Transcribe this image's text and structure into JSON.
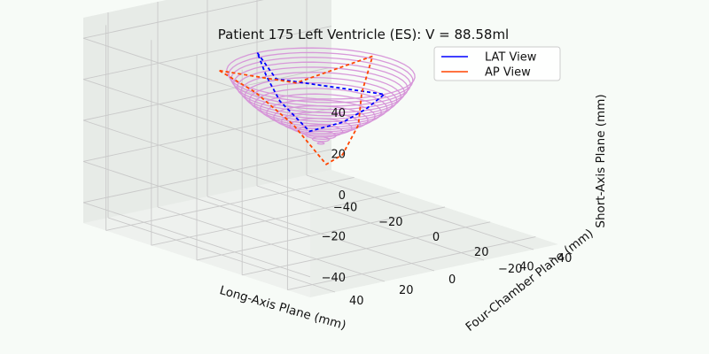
{
  "chart_data": {
    "type": "3d-line",
    "title": "Patient 175 Left Ventricle (ES): V = 88.58ml",
    "xlabel": "Long-Axis Plane (mm)",
    "ylabel": "Four-Chamber Plane (mm)",
    "zlabel": "Short-Axis Plane (mm)",
    "x_ticks": [
      "−40",
      "−20",
      "0",
      "20",
      "40"
    ],
    "y_ticks": [
      "−40",
      "−20",
      "0",
      "20",
      "40"
    ],
    "z_ticks": [
      "−40",
      "−20",
      "0",
      "20",
      "40"
    ],
    "xlim": [
      -50,
      50
    ],
    "ylim": [
      -50,
      50
    ],
    "zlim": [
      -50,
      50
    ],
    "grid": true,
    "legend": {
      "position": "top-right",
      "entries": [
        {
          "label": "LAT View",
          "color": "#0000ff"
        },
        {
          "label": "AP View",
          "color": "#ff4500"
        }
      ]
    },
    "mesh": {
      "color": "#d694d8",
      "ring_count": 18,
      "ring_z": [
        28,
        26,
        24,
        22,
        20,
        18,
        16,
        14,
        12,
        10,
        8,
        6,
        4,
        2,
        0,
        -2,
        -4,
        -6
      ],
      "ring_radii": [
        28,
        27.4,
        26.7,
        25.9,
        24.9,
        23.8,
        22.6,
        21.2,
        19.7,
        18,
        16.1,
        14,
        11.7,
        9.2,
        6.5,
        4.5,
        2.5,
        1
      ]
    },
    "series": [
      {
        "name": "LAT View",
        "color": "#0000ff",
        "style": "dashed",
        "points": [
          [
            -28,
            0,
            28
          ],
          [
            0,
            18,
            30
          ],
          [
            28,
            0,
            28
          ],
          [
            20,
            0,
            18
          ],
          [
            10,
            0,
            8
          ],
          [
            -5,
            0,
            -2
          ],
          [
            -18,
            0,
            8
          ],
          [
            -24,
            0,
            18
          ],
          [
            -28,
            0,
            28
          ]
        ]
      },
      {
        "name": "AP View",
        "color": "#ff4500",
        "style": "dashed",
        "points": [
          [
            -25,
            18,
            25
          ],
          [
            0,
            10,
            26
          ],
          [
            25,
            2,
            46
          ],
          [
            18,
            0,
            25
          ],
          [
            10,
            -6,
            5
          ],
          [
            3,
            -6,
            -12
          ],
          [
            -2,
            -4,
            -18
          ],
          [
            -10,
            2,
            0
          ],
          [
            -18,
            10,
            15
          ],
          [
            -25,
            18,
            25
          ]
        ]
      }
    ]
  }
}
